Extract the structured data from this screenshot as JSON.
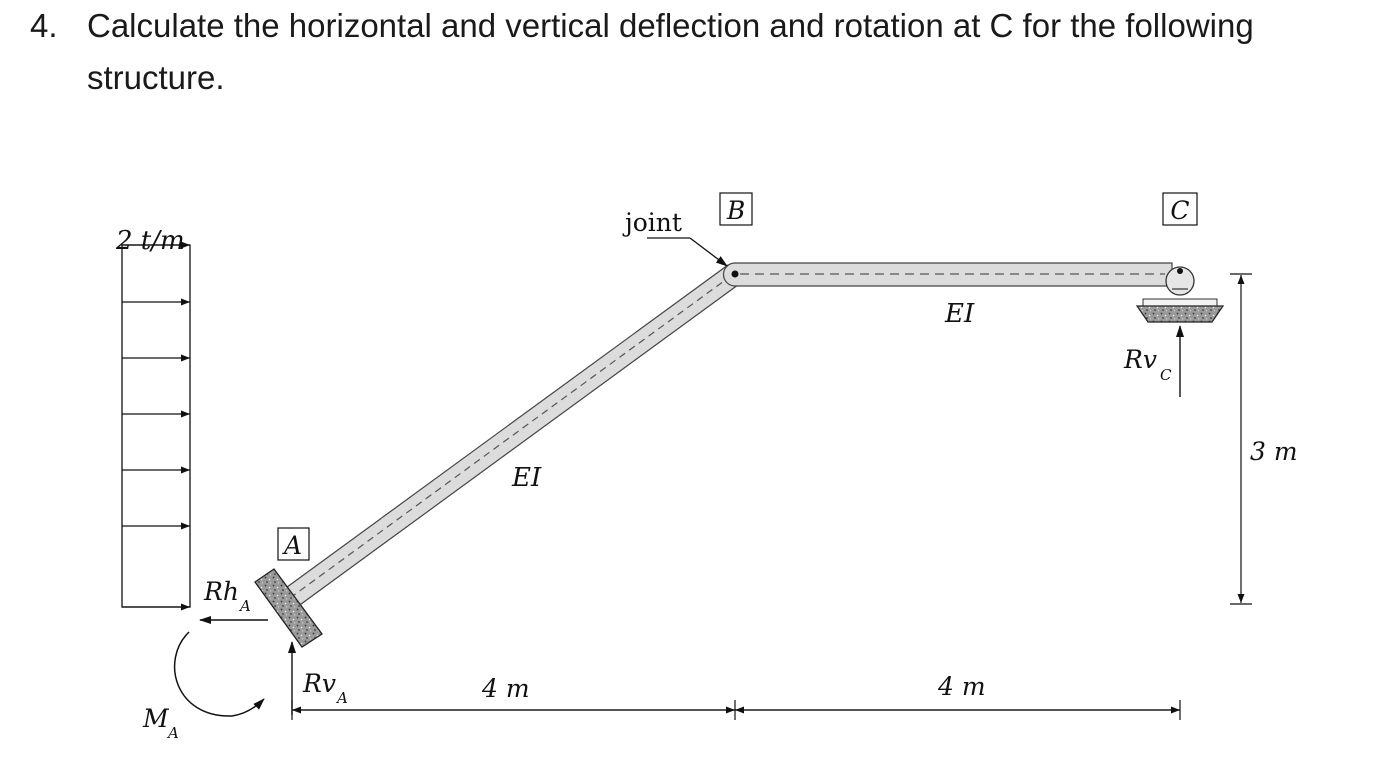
{
  "question": {
    "number": "4.",
    "text": "Calculate the horizontal and vertical deflection and rotation at C for the following structure."
  },
  "diagram": {
    "load_label": "2 t/m",
    "joint_label": "joint",
    "node_A": "A",
    "node_B": "B",
    "node_C": "C",
    "member_AB": "EI",
    "member_BC": "EI",
    "reaction_RhA": "Rh",
    "reaction_RhA_sub": "A",
    "reaction_RvA": "Rv",
    "reaction_RvA_sub": "A",
    "reaction_MA": "M",
    "reaction_MA_sub": "A",
    "reaction_RvC": "Rv",
    "reaction_RvC_sub": "C",
    "dim_AB_horizontal": "4 m",
    "dim_BC_horizontal": "4 m",
    "dim_height": "3 m"
  }
}
